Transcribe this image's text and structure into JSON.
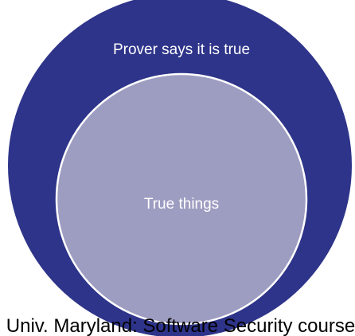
{
  "diagram": {
    "outer_set": {
      "label": "Prover says it is true",
      "fill": "#2e3489"
    },
    "inner_set": {
      "label": "True things",
      "fill": "#9d9cc1",
      "stroke": "#ffffff"
    }
  },
  "caption": "Univ. Maryland: Software Security course"
}
